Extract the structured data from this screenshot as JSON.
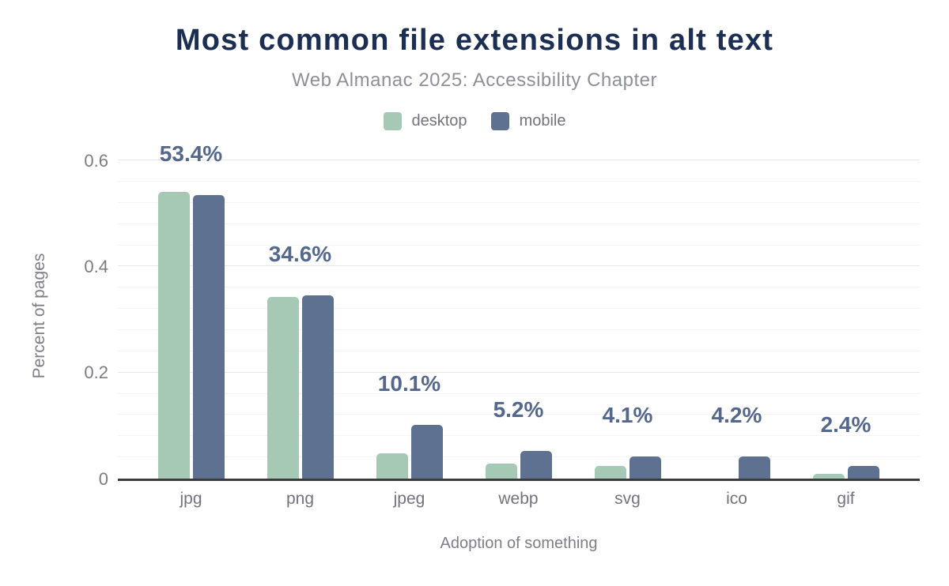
{
  "header": {
    "title": "Most common file extensions in alt text",
    "subtitle": "Web Almanac 2025: Accessibility Chapter"
  },
  "legend": {
    "items": [
      {
        "label": "desktop",
        "color": "#a5c9b5"
      },
      {
        "label": "mobile",
        "color": "#5e7190"
      }
    ]
  },
  "chart_data": {
    "type": "bar",
    "title": "Most common file extensions in alt text",
    "subtitle": "Web Almanac 2025: Accessibility Chapter",
    "categories": [
      "jpg",
      "png",
      "jpeg",
      "webp",
      "svg",
      "ico",
      "gif"
    ],
    "series": [
      {
        "name": "desktop",
        "color": "#a5c9b5",
        "values": [
          0.54,
          0.342,
          0.048,
          0.029,
          0.024,
          0,
          0.009
        ]
      },
      {
        "name": "mobile",
        "color": "#5e7190",
        "values": [
          0.534,
          0.346,
          0.101,
          0.052,
          0.041,
          0.042,
          0.024
        ]
      }
    ],
    "data_labels": {
      "labeled_series": "mobile",
      "values": [
        "53.4%",
        "34.6%",
        "10.1%",
        "5.2%",
        "4.1%",
        "4.2%",
        "2.4%"
      ]
    },
    "xlabel": "Adoption of something",
    "ylabel": "Percent of pages",
    "ytick_labels": [
      "0",
      "0.2",
      "0.4",
      "0.6"
    ],
    "ytick_values": [
      0,
      0.2,
      0.4,
      0.6
    ],
    "ylim": [
      0,
      0.62
    ],
    "minor_grid_step": 0.04,
    "grid": "horizontal",
    "legend_position": "top"
  },
  "colors": {
    "background": "#ffffff",
    "title": "#1c2f52",
    "subtitle": "#8f8f98",
    "legend_text": "#73737d",
    "tick_label": "#7b7b84",
    "category_label": "#73737d",
    "axis_title": "#7e7e88",
    "data_label": "#55688c",
    "axis_line": "#3b3b3d",
    "grid_major": "#e7e7ea",
    "grid_minor": "#f4f4f6",
    "desktop_bar": "#a5c9b5",
    "mobile_bar": "#5e7190"
  }
}
